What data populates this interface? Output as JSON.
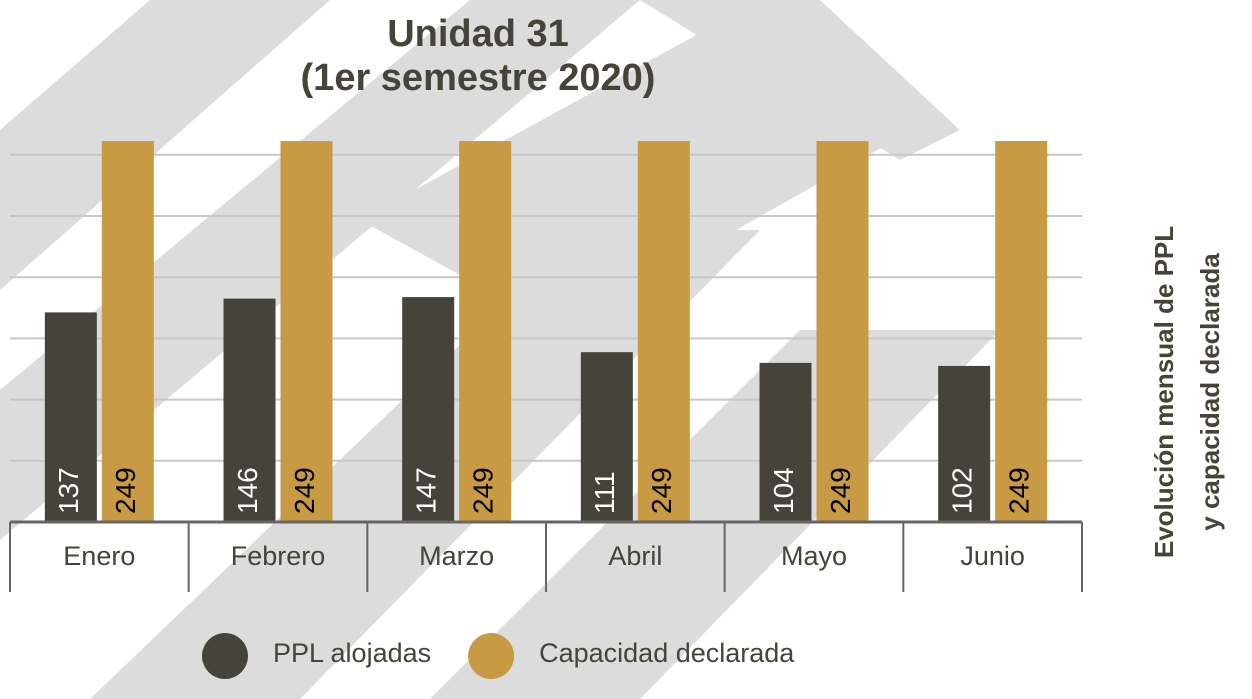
{
  "chart_data": {
    "type": "bar",
    "title": [
      "Unidad 31",
      "(1er semestre 2020)"
    ],
    "side_title": [
      "Evolución mensual de PPL",
      "y capacidad declarada"
    ],
    "categories": [
      "Enero",
      "Febrero",
      "Marzo",
      "Abril",
      "Mayo",
      "Junio"
    ],
    "series": [
      {
        "name": "PPL alojadas",
        "color": "#45433a",
        "label_color": "#ffffff",
        "values": [
          137,
          146,
          147,
          111,
          104,
          102
        ]
      },
      {
        "name": "Capacidad declarada",
        "color": "#c89a44",
        "label_color": "#000000",
        "values": [
          249,
          249,
          249,
          249,
          249,
          249
        ]
      }
    ],
    "ylim": [
      0,
      250
    ],
    "yticks": [
      40,
      80,
      120,
      160,
      200,
      240
    ],
    "grid": true
  }
}
